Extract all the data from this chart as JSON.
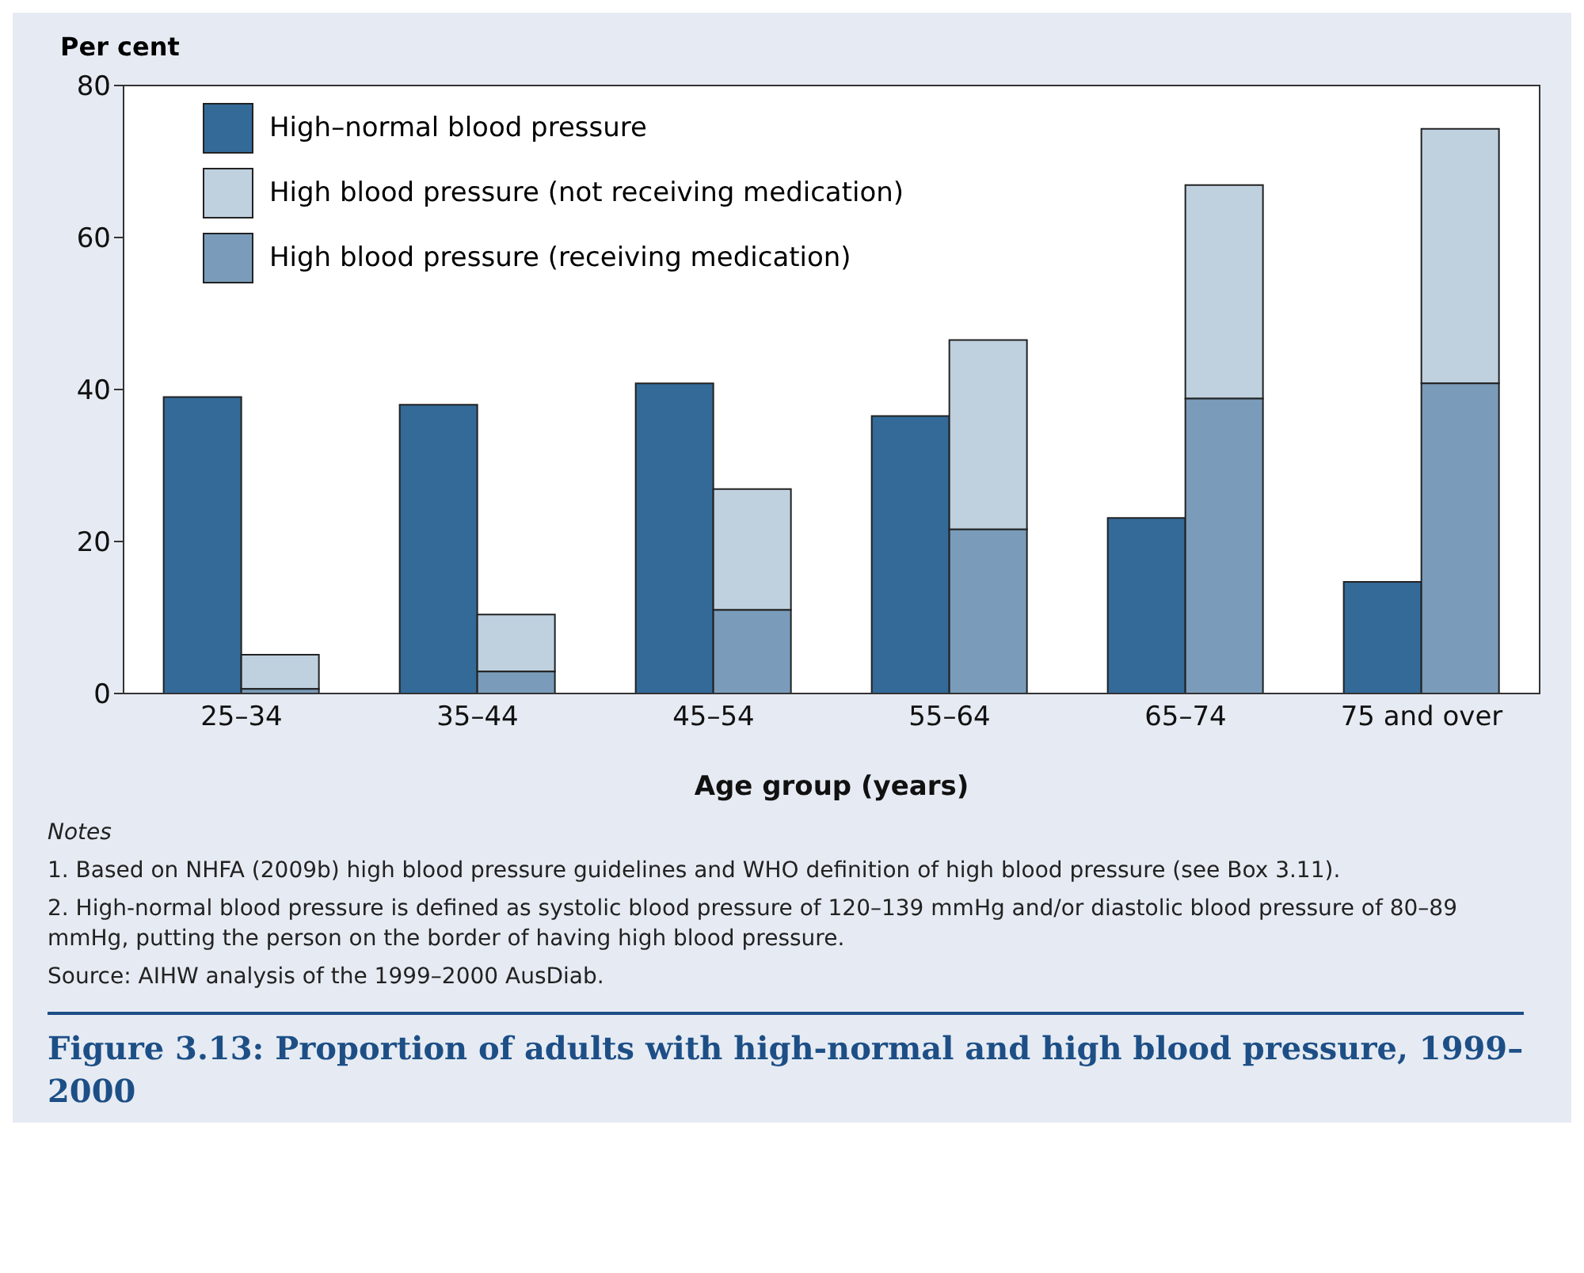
{
  "chart_data": {
    "type": "bar",
    "title": "Figure 3.13: Proportion of adults with high-normal and high blood pressure, 1999–2000",
    "ylabel": "Per cent",
    "xlabel": "Age group (years)",
    "categories": [
      "25–34",
      "35–44",
      "45–54",
      "55–64",
      "65–74",
      "75 and over"
    ],
    "series": [
      {
        "name": "High–normal blood pressure",
        "color": "#336a98",
        "values": [
          39,
          38,
          40.8,
          36.5,
          23.1,
          14.7
        ]
      },
      {
        "name": "High blood pressure (not receiving medication)",
        "color": "#bfd0df",
        "values": [
          4.5,
          7.5,
          15.9,
          24.9,
          28.1,
          33.5
        ],
        "base": [
          0.6,
          2.9,
          11,
          21.6,
          38.8,
          40.8
        ]
      },
      {
        "name": "High blood pressure (receiving medication)",
        "color": "#7a9cba",
        "values": [
          0.6,
          2.9,
          11,
          21.6,
          38.8,
          40.8
        ]
      }
    ],
    "ylim": [
      0,
      80
    ],
    "yticks": [
      0,
      20,
      40,
      60,
      80
    ],
    "legend": "top left",
    "annotations": [
      "Notes",
      "1.  Based on NHFA (2009b) high blood pressure guidelines and WHO definition of high blood pressure (see Box 3.11).",
      "2.  High-normal blood pressure is defined as systolic blood pressure of 120–139 mmHg and/or diastolic blood pressure of 80–89 mmHg, putting the person on the border of having high blood pressure.",
      "Source: AIHW analysis of the 1999–2000 AusDiab."
    ]
  }
}
